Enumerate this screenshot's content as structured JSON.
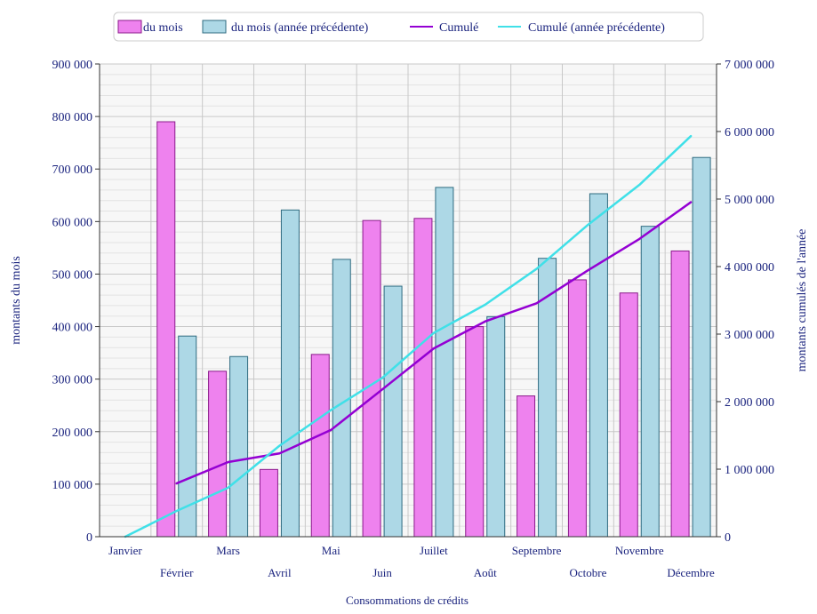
{
  "chart_data": {
    "type": "bar",
    "categories": [
      "Janvier",
      "Février",
      "Mars",
      "Avril",
      "Mai",
      "Juin",
      "Juillet",
      "Août",
      "Septembre",
      "Octobre",
      "Novembre",
      "Décembre"
    ],
    "series": [
      {
        "name": "du mois",
        "kind": "bar",
        "axis": "left",
        "color": "#ee82ee",
        "values": [
          null,
          790000,
          315000,
          128000,
          347000,
          602000,
          606000,
          400000,
          268000,
          489000,
          464000,
          544000
        ]
      },
      {
        "name": "du mois (année précédente)",
        "kind": "bar",
        "axis": "left",
        "color": "#add8e6",
        "values": [
          null,
          382000,
          343000,
          622000,
          528000,
          477000,
          665000,
          419000,
          530000,
          653000,
          591000,
          722000
        ]
      },
      {
        "name": "Cumulé",
        "kind": "line",
        "axis": "right",
        "color": "#9400d3",
        "values": [
          null,
          790000,
          1105000,
          1233000,
          1580000,
          2182000,
          2788000,
          3188000,
          3456000,
          3945000,
          4409000,
          4953000
        ]
      },
      {
        "name": "Cumulé (année précédente)",
        "kind": "line",
        "axis": "right",
        "color": "#40e0e8",
        "values": [
          0,
          382000,
          725000,
          1347000,
          1875000,
          2352000,
          3017000,
          3436000,
          3966000,
          4619000,
          5210000,
          5932000
        ]
      }
    ],
    "y_left": {
      "label": "montants du mois",
      "min": 0,
      "max": 900000,
      "ticks": [
        {
          "value": 0,
          "label": "0"
        },
        {
          "value": 100000,
          "label": "100 000"
        },
        {
          "value": 200000,
          "label": "200 000"
        },
        {
          "value": 300000,
          "label": "300 000"
        },
        {
          "value": 400000,
          "label": "400 000"
        },
        {
          "value": 500000,
          "label": "500 000"
        },
        {
          "value": 600000,
          "label": "600 000"
        },
        {
          "value": 700000,
          "label": "700 000"
        },
        {
          "value": 800000,
          "label": "800 000"
        },
        {
          "value": 900000,
          "label": "900 000"
        }
      ]
    },
    "y_right": {
      "label": "montants cumulés de l'année",
      "min": 0,
      "max": 7000000,
      "ticks": [
        {
          "value": 0,
          "label": "0"
        },
        {
          "value": 1000000,
          "label": "1 000 000"
        },
        {
          "value": 2000000,
          "label": "2 000 000"
        },
        {
          "value": 3000000,
          "label": "3 000 000"
        },
        {
          "value": 4000000,
          "label": "4 000 000"
        },
        {
          "value": 5000000,
          "label": "5 000 000"
        },
        {
          "value": 6000000,
          "label": "6 000 000"
        },
        {
          "value": 7000000,
          "label": "7 000 000"
        }
      ]
    },
    "xlabel": "Consommations de crédits",
    "grid": true,
    "legend_position": "top-center",
    "colors": {
      "axis_text": "#1a237e",
      "plot_background": "#f7f7f7",
      "grid": "#d0d0d0"
    }
  }
}
